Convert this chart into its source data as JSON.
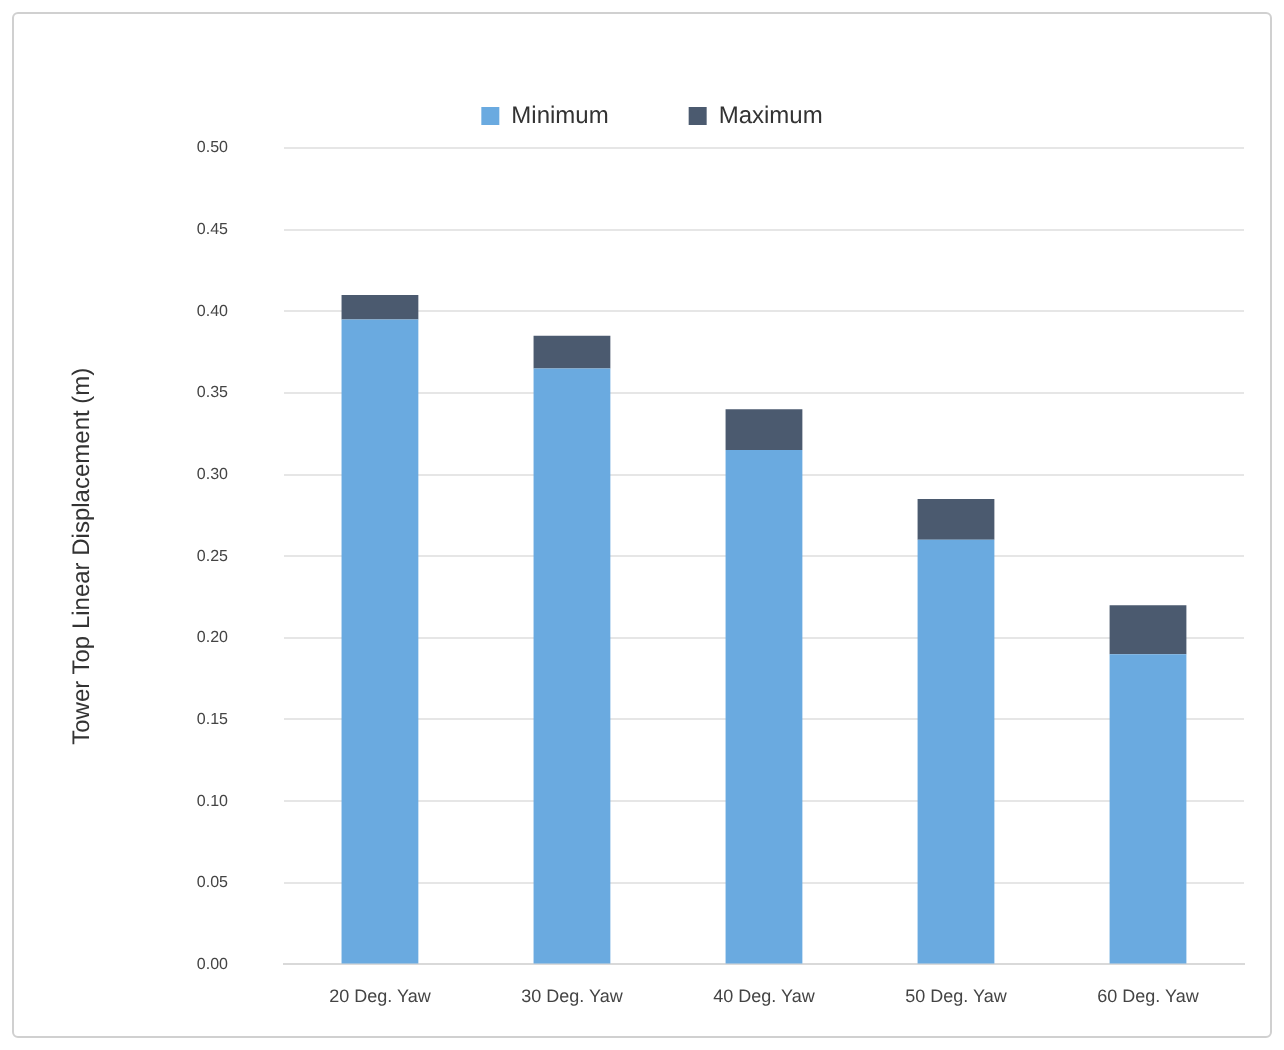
{
  "chart_data": {
    "type": "bar",
    "stacked": true,
    "ylabel": "Tower Top Linear Displacement (m)",
    "categories": [
      "20 Deg. Yaw",
      "30 Deg. Yaw",
      "40 Deg. Yaw",
      "50 Deg. Yaw",
      "60 Deg. Yaw"
    ],
    "series": [
      {
        "name": "Minimum",
        "color": "#6aaae0",
        "values": [
          0.395,
          0.365,
          0.315,
          0.26,
          0.19
        ]
      },
      {
        "name": "Maximum",
        "color": "#4b5a6f",
        "values": [
          0.015,
          0.02,
          0.025,
          0.025,
          0.03
        ]
      }
    ],
    "ylim": [
      0,
      0.5
    ],
    "yticks": [
      {
        "value": 0,
        "label": "0.00"
      },
      {
        "value": 0.05,
        "label": "0.05"
      },
      {
        "value": 0.1,
        "label": "0.10"
      },
      {
        "value": 0.15,
        "label": "0.15"
      },
      {
        "value": 0.2,
        "label": "0.20"
      },
      {
        "value": 0.25,
        "label": "0.25"
      },
      {
        "value": 0.3,
        "label": "0.30"
      },
      {
        "value": 0.35,
        "label": "0.35"
      },
      {
        "value": 0.4,
        "label": "0.40"
      },
      {
        "value": 0.45,
        "label": "0.45"
      },
      {
        "value": 0.5,
        "label": "0.50"
      }
    ],
    "grid": "y",
    "legend": "top"
  }
}
